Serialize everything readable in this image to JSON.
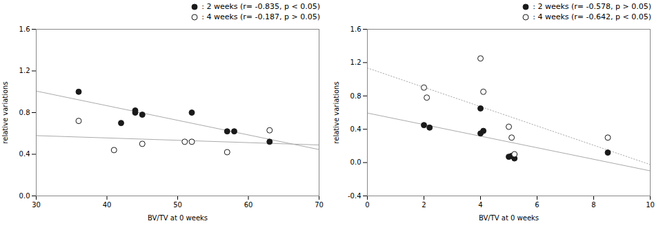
{
  "chart_data": [
    {
      "type": "scatter",
      "x_label": "BV/TV at 0 weeks",
      "y_label": "relative variations",
      "xlim": [
        30,
        70
      ],
      "ylim": [
        0,
        1.6
      ],
      "xticks": [
        30,
        40,
        50,
        60,
        70
      ],
      "yticks": [
        {
          "value": 0,
          "label": "0.0"
        },
        0.4,
        0.8,
        1.2,
        1.6
      ],
      "grid": false,
      "legend": "upper right",
      "series": [
        {
          "name": ": 2 weeks (r= -0.835, p < 0.05)",
          "type": "scatter",
          "marker": "circle",
          "color": "#1a1a1a",
          "x": [
            36,
            42,
            44,
            44,
            45,
            52,
            57,
            58,
            63
          ],
          "values": [
            1.0,
            0.7,
            0.8,
            0.82,
            0.78,
            0.8,
            0.62,
            0.62,
            0.52
          ]
        },
        {
          "name": ": 4 weeks (r= -0.187, p > 0.05)",
          "type": "scatter",
          "marker": "open circle",
          "color": "#1a1a1a",
          "x": [
            36,
            41,
            45,
            51,
            52,
            57,
            63
          ],
          "values": [
            0.72,
            0.44,
            0.5,
            0.52,
            0.52,
            0.42,
            0.63
          ]
        },
        {
          "type": "line",
          "line_style": "solid",
          "color": "#aaaaaa",
          "x": [
            30,
            70
          ],
          "values": [
            1.0067,
            0.4452
          ]
        },
        {
          "type": "line",
          "line_style": "solid",
          "color": "#aaaaaa",
          "x": [
            30,
            70
          ],
          "values": [
            0.579,
            0.4892
          ]
        }
      ]
    },
    {
      "type": "scatter",
      "x_label": "BV/TV at 0 weeks",
      "y_label": "relative variations",
      "xlim": [
        0,
        10
      ],
      "ylim": [
        -0.4,
        1.6
      ],
      "xticks": [
        0,
        2,
        4,
        6,
        8,
        10
      ],
      "yticks": [
        -0.4,
        {
          "value": 0,
          "label": "0.0"
        },
        0.4,
        0.8,
        1.2,
        1.6
      ],
      "grid": false,
      "legend": "upper right",
      "series": [
        {
          "name": ": 2 weeks (r= -0.578, p > 0.05)",
          "type": "scatter",
          "marker": "circle",
          "color": "#1a1a1a",
          "x": [
            2,
            2.2,
            4,
            4,
            4.1,
            5,
            5.1,
            5.2,
            8.5
          ],
          "values": [
            0.45,
            0.42,
            0.35,
            0.65,
            0.38,
            0.07,
            0.08,
            0.05,
            0.12
          ]
        },
        {
          "name": ": 4 weeks (r= -0.642, p < 0.05)",
          "type": "scatter",
          "marker": "open circle",
          "color": "#1a1a1a",
          "x": [
            2,
            2.1,
            4,
            4.1,
            5,
            5.1,
            5.2,
            8.5
          ],
          "values": [
            0.9,
            0.78,
            1.25,
            0.85,
            0.43,
            0.3,
            0.1,
            0.3
          ]
        },
        {
          "type": "line",
          "line_style": "solid",
          "color": "#aaaaaa",
          "x": [
            0,
            10
          ],
          "values": [
            0.5946,
            -0.099
          ]
        },
        {
          "type": "line",
          "line_style": "dotted",
          "color": "#aaaaaa",
          "x": [
            0,
            10
          ],
          "values": [
            1.1354,
            -0.0238
          ]
        }
      ]
    }
  ]
}
